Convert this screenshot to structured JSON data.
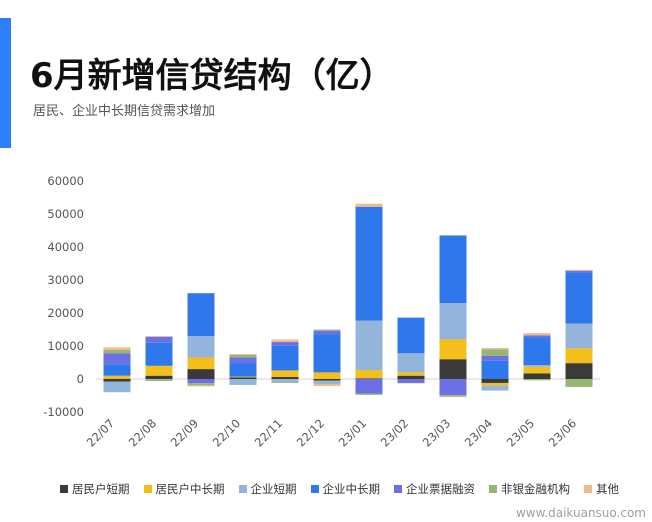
{
  "header": {
    "title": "6月新增信贷结构（亿）",
    "subtitle": "居民、企业中长期信贷需求增加"
  },
  "watermark": "www.daikuansuo.com",
  "colors": {
    "accent": "#2d7ff9"
  },
  "chart_data": {
    "type": "bar",
    "stacked": true,
    "title": "6月新增信贷结构（亿）",
    "subtitle": "居民、企业中长期信贷需求增加",
    "categories": [
      "22/07",
      "22/08",
      "22/09",
      "22/10",
      "22/11",
      "22/12",
      "23/01",
      "23/02",
      "23/03",
      "23/04",
      "23/05",
      "23/06"
    ],
    "ylim": [
      -10000,
      60000
    ],
    "yticks": [
      -10000,
      0,
      10000,
      20000,
      30000,
      40000,
      50000,
      60000
    ],
    "grid": false,
    "legend_position": "bottom",
    "series": [
      {
        "name": "居民户短期",
        "color": "#3a3a3a",
        "values": [
          -800,
          1000,
          3000,
          500,
          600,
          -500,
          200,
          1000,
          6000,
          -1200,
          1700,
          4800
        ]
      },
      {
        "name": "居民户中长期",
        "color": "#f5bf19",
        "values": [
          1000,
          3000,
          3500,
          200,
          2000,
          2000,
          2500,
          1000,
          6000,
          -800,
          2000,
          4500
        ]
      },
      {
        "name": "企业短期",
        "color": "#93b5dc",
        "values": [
          -3200,
          -200,
          6500,
          -1800,
          -900,
          -1000,
          15000,
          5800,
          11000,
          -1500,
          500,
          7500
        ]
      },
      {
        "name": "企业中长期",
        "color": "#2f78ec",
        "values": [
          3500,
          7000,
          13000,
          4000,
          7500,
          11500,
          34500,
          10800,
          20500,
          5500,
          8500,
          15500
        ]
      },
      {
        "name": "企业票据融资",
        "color": "#6b70e6",
        "values": [
          3300,
          1800,
          -1300,
          1800,
          1100,
          1100,
          -4400,
          -1200,
          -4900,
          1500,
          500,
          500
        ]
      },
      {
        "name": "非银金融机构",
        "color": "#96b671",
        "values": [
          1000,
          -400,
          -700,
          800,
          -300,
          400,
          -400,
          0,
          -400,
          2000,
          -400,
          -2400
        ]
      },
      {
        "name": "其他",
        "color": "#f2b98a",
        "values": [
          800,
          200,
          -200,
          300,
          800,
          -600,
          900,
          -100,
          -200,
          400,
          700,
          300
        ]
      }
    ]
  }
}
